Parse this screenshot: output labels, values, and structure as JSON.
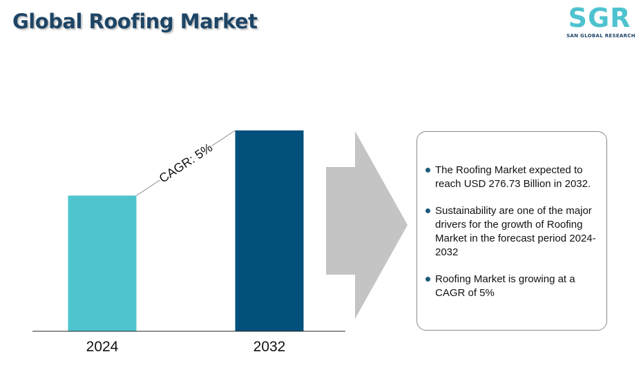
{
  "title": "Global Roofing Market",
  "logo": {
    "letters": "SGR",
    "subtitle": "SAN GLOBAL RESEARCH"
  },
  "chart_data": {
    "type": "bar",
    "categories": [
      "2024",
      "2032"
    ],
    "values": [
      187,
      276.73
    ],
    "colors": [
      "#4fc4cf",
      "#03507d"
    ],
    "annotation": "CAGR: 5%",
    "xlabel": "",
    "ylabel": "",
    "ylim": [
      0,
      276.73
    ],
    "grid": false
  },
  "arrow_color": "#c4c4c4",
  "bullets": [
    "The Roofing Market expected to reach USD 276.73 Billion in 2032.",
    "Sustainability are one of the major drivers for the growth of Roofing Market in the forecast period 2024-2032",
    "Roofing Market is growing at a CAGR of 5%"
  ]
}
